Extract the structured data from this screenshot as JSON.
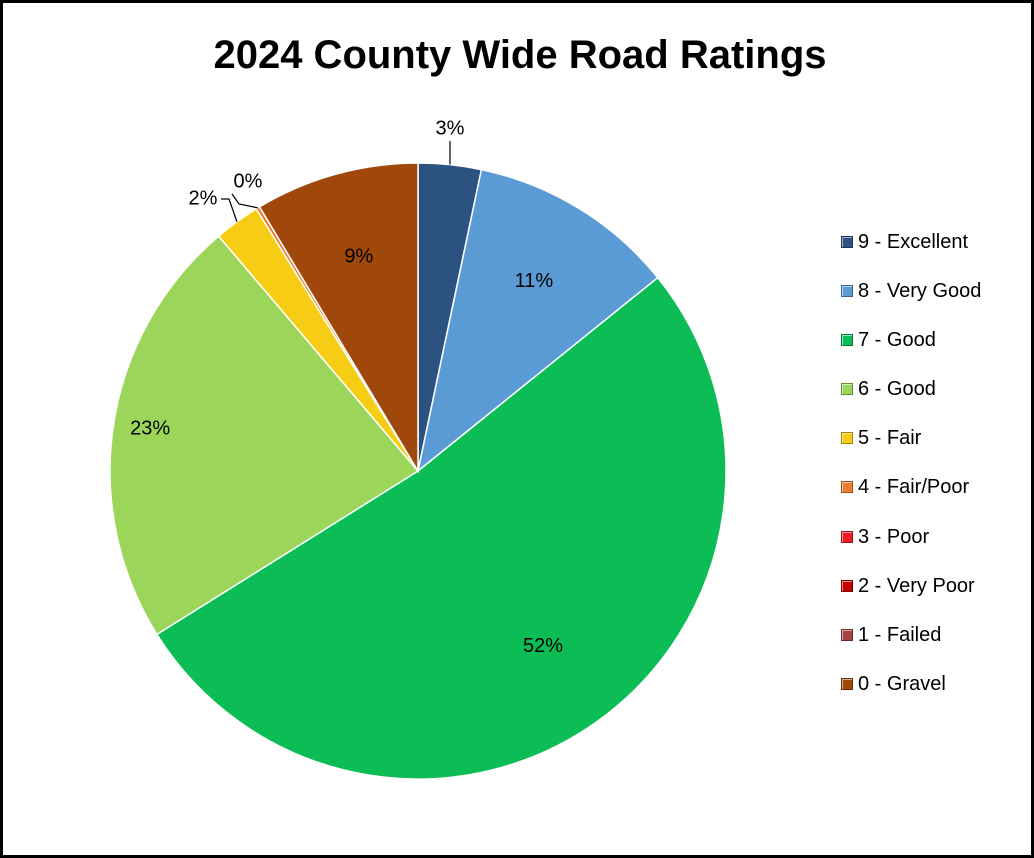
{
  "chart_data": {
    "type": "pie",
    "title": "2024 County Wide Road Ratings",
    "legend_position": "right",
    "categories": [
      "9 - Excellent",
      "8 - Very Good",
      "7 - Good",
      "6 - Good",
      "5 - Fair",
      "4 - Fair/Poor",
      "3 - Poor",
      "2 - Very Poor",
      "1 - Failed",
      "0 - Gravel"
    ],
    "values": [
      3.3,
      10.9,
      51.9,
      22.7,
      2.4,
      0.2,
      0,
      0,
      0,
      8.6
    ],
    "labels": [
      "3%",
      "11%",
      "52%",
      "23%",
      "2%",
      "0%",
      "",
      "",
      "",
      "9%"
    ],
    "colors": [
      "#2c5282",
      "#5b9bd5",
      "#0cbd55",
      "#9bd55a",
      "#f6cd14",
      "#ed7d31",
      "#ee1c25",
      "#c00000",
      "#a04545",
      "#a0480c"
    ]
  }
}
